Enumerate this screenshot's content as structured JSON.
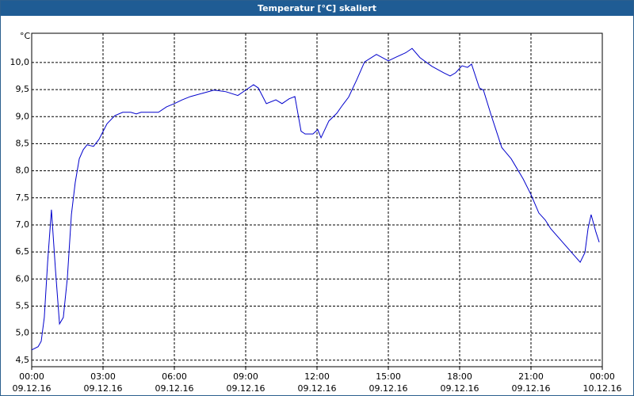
{
  "window": {
    "title": "Temperatur [°C] skaliert"
  },
  "chart_data": {
    "type": "line",
    "unit_label": "°C",
    "x": [
      0,
      0.27,
      0.4,
      0.53,
      0.67,
      0.83,
      1.0,
      1.17,
      1.33,
      1.5,
      1.67,
      1.83,
      2.0,
      2.17,
      2.33,
      2.6,
      2.83,
      3.17,
      3.5,
      3.83,
      4.17,
      4.4,
      4.6,
      5.0,
      5.33,
      5.67,
      6.0,
      6.33,
      6.67,
      7.17,
      7.67,
      8.17,
      8.67,
      9.0,
      9.33,
      9.53,
      9.87,
      10.27,
      10.53,
      10.83,
      11.07,
      11.33,
      11.5,
      11.83,
      12.03,
      12.17,
      12.5,
      12.83,
      13.07,
      13.33,
      13.67,
      14.0,
      14.5,
      15.0,
      15.33,
      15.73,
      16.0,
      16.33,
      16.83,
      17.33,
      17.6,
      17.83,
      18.1,
      18.33,
      18.5,
      18.83,
      19.0,
      19.33,
      19.77,
      20.17,
      20.67,
      21.0,
      21.33,
      21.6,
      21.83,
      22.33,
      22.83,
      23.07,
      23.27,
      23.4,
      23.53,
      23.73,
      23.87
    ],
    "series": [
      {
        "color": "#0000cc",
        "values": [
          4.69,
          4.75,
          4.85,
          5.29,
          6.31,
          7.28,
          6.17,
          5.17,
          5.29,
          6.02,
          7.19,
          7.78,
          8.22,
          8.39,
          8.48,
          8.45,
          8.58,
          8.87,
          9.02,
          9.08,
          9.08,
          9.05,
          9.08,
          9.08,
          9.08,
          9.18,
          9.24,
          9.31,
          9.37,
          9.43,
          9.49,
          9.46,
          9.39,
          9.49,
          9.59,
          9.53,
          9.24,
          9.31,
          9.24,
          9.33,
          9.37,
          8.73,
          8.68,
          8.68,
          8.76,
          8.61,
          8.92,
          9.06,
          9.21,
          9.36,
          9.68,
          10.01,
          10.15,
          10.03,
          10.1,
          10.18,
          10.26,
          10.09,
          9.93,
          9.81,
          9.75,
          9.81,
          9.94,
          9.91,
          9.97,
          9.53,
          9.49,
          9.02,
          8.43,
          8.22,
          7.85,
          7.56,
          7.22,
          7.09,
          6.93,
          6.68,
          6.43,
          6.31,
          6.49,
          6.93,
          7.19,
          6.87,
          6.68
        ]
      }
    ],
    "xlim": [
      0,
      24
    ],
    "xticks": [
      {
        "value": 0,
        "label": "00:00"
      },
      {
        "value": 3,
        "label": "03:00"
      },
      {
        "value": 6,
        "label": "06:00"
      },
      {
        "value": 9,
        "label": "09:00"
      },
      {
        "value": 12,
        "label": "12:00"
      },
      {
        "value": 15,
        "label": "15:00"
      },
      {
        "value": 18,
        "label": "18:00"
      },
      {
        "value": 21,
        "label": "21:00"
      },
      {
        "value": 24,
        "label": "00:00"
      }
    ],
    "xtick_dates": [
      "09.12.16",
      "09.12.16",
      "09.12.16",
      "09.12.16",
      "09.12.16",
      "09.12.16",
      "09.12.16",
      "09.12.16",
      "10.12.16"
    ],
    "ylim": [
      4.38,
      10.54
    ],
    "yticks": [
      {
        "value": 4.5,
        "label": "4,5"
      },
      {
        "value": 5,
        "label": "5,0"
      },
      {
        "value": 5.5,
        "label": "5,5"
      },
      {
        "value": 6,
        "label": "6,0"
      },
      {
        "value": 6.5,
        "label": "6,5"
      },
      {
        "value": 7,
        "label": "7,0"
      },
      {
        "value": 7.5,
        "label": "7,5"
      },
      {
        "value": 8,
        "label": "8,0"
      },
      {
        "value": 8.5,
        "label": "8,5"
      },
      {
        "value": 9,
        "label": "9,0"
      },
      {
        "value": 9.5,
        "label": "9,5"
      },
      {
        "value": 10,
        "label": "10,0"
      }
    ],
    "grid": true
  }
}
